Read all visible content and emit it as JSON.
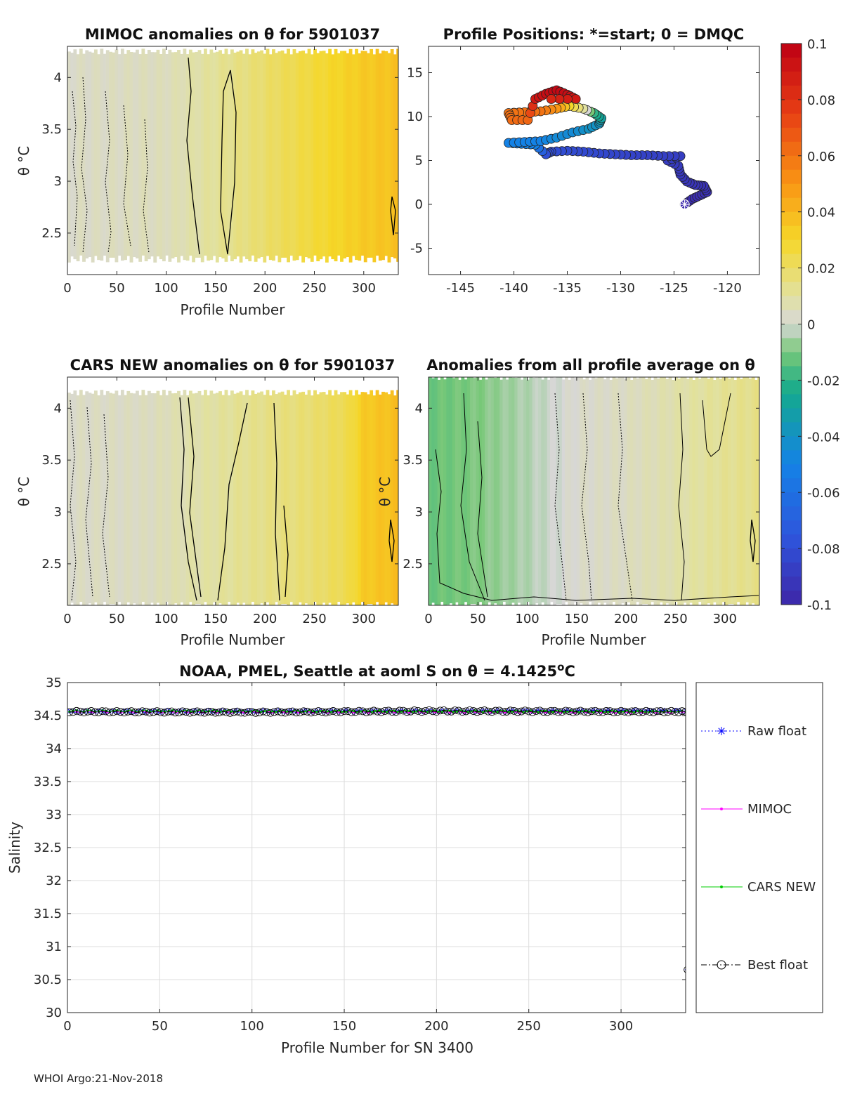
{
  "footer": "WHOI Argo:21-Nov-2018",
  "colors": {
    "raw_float": "#0000ff",
    "mimoc": "#ff00ff",
    "cars_new": "#00cc00",
    "best_float": "#000000",
    "grid": "#dcdcdc"
  },
  "chart_data": [
    {
      "type": "heatmap",
      "id": "mimoc",
      "title": "MIMOC anomalies on θ  for 5901037",
      "xlabel": "Profile Number",
      "ylabel": "θ °C",
      "xlim": [
        0,
        335
      ],
      "ylim": [
        2.1,
        4.3
      ],
      "xticks": [
        0,
        50,
        100,
        150,
        200,
        250,
        300
      ],
      "yticks": [
        2.5,
        3,
        3.5,
        4
      ],
      "ytick_labels": [
        "2.5",
        "3",
        "3.5",
        "4"
      ],
      "data_theta_range": [
        2.25,
        4.25
      ],
      "anomaly_profile": [
        {
          "x": 0,
          "v": 0.003
        },
        {
          "x": 50,
          "v": 0.004
        },
        {
          "x": 100,
          "v": 0.005
        },
        {
          "x": 125,
          "v": 0.008
        },
        {
          "x": 170,
          "v": 0.014
        },
        {
          "x": 220,
          "v": 0.022
        },
        {
          "x": 270,
          "v": 0.03
        },
        {
          "x": 300,
          "v": 0.034
        },
        {
          "x": 335,
          "v": 0.037
        }
      ]
    },
    {
      "type": "scatter",
      "id": "positions",
      "title": "Profile Positions: *=start; 0 = DMQC",
      "xlabel": "",
      "ylabel": "",
      "xlim": [
        -148,
        -117
      ],
      "ylim": [
        -8,
        18
      ],
      "xticks": [
        -145,
        -140,
        -135,
        -130,
        -125,
        -120
      ],
      "yticks": [
        -5,
        0,
        5,
        10,
        15
      ],
      "color_scale": [
        -0.1,
        0.1
      ],
      "track": [
        {
          "lon": -124.0,
          "lat": 0.0,
          "c": -0.098
        },
        {
          "lon": -123.3,
          "lat": 0.6,
          "c": -0.097
        },
        {
          "lon": -122.6,
          "lat": 1.0,
          "c": -0.096
        },
        {
          "lon": -121.9,
          "lat": 1.4,
          "c": -0.095
        },
        {
          "lon": -122.2,
          "lat": 2.1,
          "c": -0.094
        },
        {
          "lon": -123.0,
          "lat": 2.2,
          "c": -0.093
        },
        {
          "lon": -123.8,
          "lat": 2.6,
          "c": -0.092
        },
        {
          "lon": -124.4,
          "lat": 3.4,
          "c": -0.091
        },
        {
          "lon": -124.6,
          "lat": 4.4,
          "c": -0.09
        },
        {
          "lon": -125.6,
          "lat": 5.0,
          "c": -0.089
        },
        {
          "lon": -124.4,
          "lat": 5.5,
          "c": -0.088
        },
        {
          "lon": -126.0,
          "lat": 5.5,
          "c": -0.087
        },
        {
          "lon": -127.5,
          "lat": 5.6,
          "c": -0.086
        },
        {
          "lon": -129.0,
          "lat": 5.6,
          "c": -0.085
        },
        {
          "lon": -130.5,
          "lat": 5.7,
          "c": -0.084
        },
        {
          "lon": -132.0,
          "lat": 5.8,
          "c": -0.083
        },
        {
          "lon": -133.5,
          "lat": 6.0,
          "c": -0.082
        },
        {
          "lon": -135.0,
          "lat": 6.1,
          "c": -0.081
        },
        {
          "lon": -136.5,
          "lat": 6.0,
          "c": -0.08
        },
        {
          "lon": -137.0,
          "lat": 5.7,
          "c": -0.079
        },
        {
          "lon": -138.0,
          "lat": 6.8,
          "c": -0.05
        },
        {
          "lon": -139.3,
          "lat": 6.9,
          "c": -0.05
        },
        {
          "lon": -140.5,
          "lat": 7.0,
          "c": -0.05
        },
        {
          "lon": -139.0,
          "lat": 7.1,
          "c": -0.05
        },
        {
          "lon": -137.5,
          "lat": 7.2,
          "c": -0.05
        },
        {
          "lon": -136.0,
          "lat": 7.6,
          "c": -0.045
        },
        {
          "lon": -134.5,
          "lat": 8.2,
          "c": -0.045
        },
        {
          "lon": -133.0,
          "lat": 8.6,
          "c": -0.04
        },
        {
          "lon": -132.0,
          "lat": 9.2,
          "c": -0.04
        },
        {
          "lon": -131.8,
          "lat": 9.8,
          "c": -0.03
        },
        {
          "lon": -132.5,
          "lat": 10.4,
          "c": -0.02
        },
        {
          "lon": -133.5,
          "lat": 10.9,
          "c": 0.01
        },
        {
          "lon": -134.8,
          "lat": 11.2,
          "c": 0.03
        },
        {
          "lon": -136.0,
          "lat": 10.9,
          "c": 0.05
        },
        {
          "lon": -137.5,
          "lat": 10.6,
          "c": 0.06
        },
        {
          "lon": -139.0,
          "lat": 10.5,
          "c": 0.06
        },
        {
          "lon": -140.5,
          "lat": 10.4,
          "c": 0.06
        },
        {
          "lon": -140.2,
          "lat": 9.6,
          "c": 0.062
        },
        {
          "lon": -138.7,
          "lat": 9.6,
          "c": 0.064
        },
        {
          "lon": -138.0,
          "lat": 12.0,
          "c": 0.09
        },
        {
          "lon": -137.0,
          "lat": 12.6,
          "c": 0.095
        },
        {
          "lon": -136.0,
          "lat": 13.0,
          "c": 0.097
        },
        {
          "lon": -135.0,
          "lat": 12.5,
          "c": 0.095
        },
        {
          "lon": -134.2,
          "lat": 12.0,
          "c": 0.09
        },
        {
          "lon": -136.5,
          "lat": 12.0,
          "c": 0.085
        }
      ]
    },
    {
      "type": "heatmap",
      "id": "cars",
      "title": "CARS NEW anomalies on θ for 5901037",
      "xlabel": "Profile Number",
      "ylabel": "θ °C",
      "xlim": [
        0,
        335
      ],
      "ylim": [
        2.1,
        4.3
      ],
      "xticks": [
        0,
        50,
        100,
        150,
        200,
        250,
        300
      ],
      "yticks": [
        2.5,
        3,
        3.5,
        4
      ],
      "ytick_labels": [
        "2.5",
        "3",
        "3.5",
        "4"
      ],
      "data_theta_range": [
        2.1,
        4.15
      ],
      "anomaly_profile": [
        {
          "x": 0,
          "v": 0.003
        },
        {
          "x": 80,
          "v": 0.004
        },
        {
          "x": 150,
          "v": 0.01
        },
        {
          "x": 200,
          "v": 0.014
        },
        {
          "x": 250,
          "v": 0.018
        },
        {
          "x": 285,
          "v": 0.024
        },
        {
          "x": 300,
          "v": 0.034
        },
        {
          "x": 335,
          "v": 0.038
        }
      ]
    },
    {
      "type": "heatmap",
      "id": "profile-average",
      "title": "Anomalies from all profile average on θ",
      "xlabel": "Profile Number",
      "ylabel": "θ °C",
      "xlim": [
        0,
        335
      ],
      "ylim": [
        2.1,
        4.3
      ],
      "xticks": [
        0,
        50,
        100,
        150,
        200,
        250,
        300
      ],
      "yticks": [
        2.5,
        3,
        3.5,
        4
      ],
      "ytick_labels": [
        "2.5",
        "3",
        "3.5",
        "4"
      ],
      "data_theta_range": [
        2.1,
        4.3
      ],
      "anomaly_profile": [
        {
          "x": 0,
          "v": -0.012
        },
        {
          "x": 40,
          "v": -0.01
        },
        {
          "x": 100,
          "v": -0.004
        },
        {
          "x": 150,
          "v": 0.002
        },
        {
          "x": 200,
          "v": 0.004
        },
        {
          "x": 250,
          "v": 0.008
        },
        {
          "x": 300,
          "v": 0.012
        },
        {
          "x": 335,
          "v": 0.014
        }
      ]
    },
    {
      "type": "line",
      "id": "salinity",
      "title": "NOAA, PMEL, Seattle at aoml S on θ = 4.1425°C",
      "title_parts": {
        "main": "NOAA, PMEL, Seattle at aoml S on θ = 4.1425",
        "sup": "o",
        "tail": "C"
      },
      "xlabel": "Profile Number for SN 3400",
      "ylabel": "Salinity",
      "xlim": [
        0,
        335
      ],
      "ylim": [
        30,
        35
      ],
      "xticks": [
        0,
        50,
        100,
        150,
        200,
        250,
        300
      ],
      "yticks": [
        30,
        30.5,
        31,
        31.5,
        32,
        32.5,
        33,
        33.5,
        34,
        34.5,
        35
      ],
      "ytick_labels": [
        "30",
        "30.5",
        "31",
        "31.5",
        "32",
        "32.5",
        "33",
        "33.5",
        "34",
        "34.5",
        "35"
      ],
      "grid": true,
      "legend": "right-outside",
      "series": [
        {
          "name": "Raw float",
          "marker": "asterisk",
          "style": "dotted",
          "points": [
            [
              1,
              34.56
            ],
            [
              335,
              34.57
            ],
            [
              336,
              30.65
            ]
          ]
        },
        {
          "name": "MIMOC",
          "marker": "dot",
          "style": "solid",
          "points": [
            [
              1,
              34.56
            ],
            [
              335,
              34.55
            ]
          ]
        },
        {
          "name": "CARS NEW",
          "marker": "dot",
          "style": "solid",
          "points": [
            [
              1,
              34.57
            ],
            [
              335,
              34.56
            ]
          ]
        },
        {
          "name": "Best float",
          "marker": "circle",
          "style": "dashdot",
          "points": [
            [
              1,
              34.56
            ],
            [
              100,
              34.55
            ],
            [
              200,
              34.57
            ],
            [
              300,
              34.56
            ],
            [
              335,
              34.56
            ],
            [
              336,
              30.65
            ]
          ]
        }
      ]
    }
  ],
  "colorbar": {
    "min": -0.1,
    "max": 0.1,
    "tick_values": [
      0.1,
      0.08,
      0.06,
      0.04,
      0.02,
      0,
      -0.02,
      -0.04,
      -0.06,
      -0.08,
      -0.1
    ],
    "tick_labels": [
      "0.1",
      "0.08",
      "0.06",
      "0.04",
      "0.02",
      "0",
      "-0.02",
      "-0.04",
      "-0.06",
      "-0.08",
      "-0.1"
    ]
  }
}
